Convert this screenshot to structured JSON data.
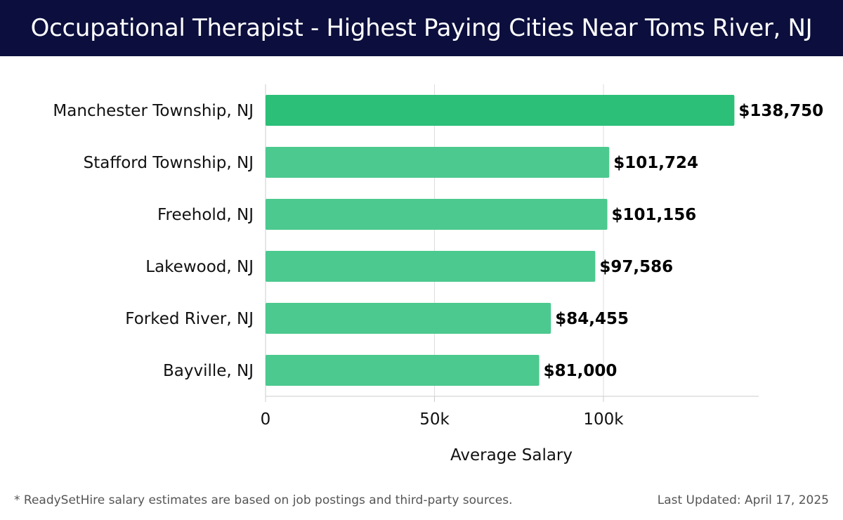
{
  "title": "Occupational Therapist - Highest Paying Cities Near Toms River, NJ",
  "footnote": "* ReadySetHire salary estimates are based on job postings and third-party sources.",
  "last_updated": "Last Updated: April 17, 2025",
  "colors": {
    "title_bg": "#0c0f3d",
    "top_bar": "#2bbf78",
    "bar": "#4cc98f",
    "grid": "#dddddd",
    "axis": "#cccccc"
  },
  "chart_data": {
    "type": "bar",
    "orientation": "horizontal",
    "title": "Occupational Therapist - Highest Paying Cities Near Toms River, NJ",
    "xlabel": "Average Salary",
    "ylabel": "",
    "xlim": [
      0,
      145000
    ],
    "grid": true,
    "ticks": [
      {
        "value": 0,
        "label": "0"
      },
      {
        "value": 50000,
        "label": "50k"
      },
      {
        "value": 100000,
        "label": "100k"
      }
    ],
    "categories": [
      "Manchester Township, NJ",
      "Stafford Township, NJ",
      "Freehold, NJ",
      "Lakewood, NJ",
      "Forked River, NJ",
      "Bayville, NJ"
    ],
    "values": [
      138750,
      101724,
      101156,
      97586,
      84455,
      81000
    ],
    "value_labels": [
      "$138,750",
      "$101,724",
      "$101,156",
      "$97,586",
      "$84,455",
      "$81,000"
    ]
  }
}
